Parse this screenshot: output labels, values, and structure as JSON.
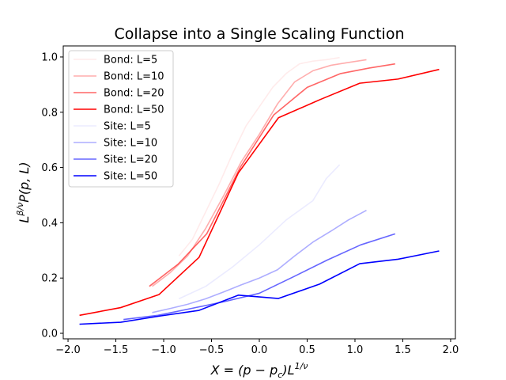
{
  "chart_data": {
    "type": "line",
    "title": "Collapse into a Single Scaling Function",
    "xlabel_parts": [
      "X = (p − p",
      "c",
      ")L",
      "1/ν"
    ],
    "ylabel_parts": [
      "L",
      "β/ν",
      "P(p, L)"
    ],
    "xlim": [
      -2.05,
      2.05
    ],
    "ylim": [
      -0.02,
      1.04
    ],
    "xticks": [
      -2.0,
      -1.5,
      -1.0,
      -0.5,
      0.0,
      0.5,
      1.0,
      1.5,
      2.0
    ],
    "xtick_labels": [
      "−2.0",
      "−1.5",
      "−1.0",
      "−0.5",
      "0.0",
      "0.5",
      "1.0",
      "1.5",
      "2.0"
    ],
    "yticks": [
      0.0,
      0.2,
      0.4,
      0.6,
      0.8,
      1.0
    ],
    "ytick_labels": [
      "0.0",
      "0.2",
      "0.4",
      "0.6",
      "0.8",
      "1.0"
    ],
    "grid": false,
    "legend_position": "top-left",
    "series": [
      {
        "name": "Bond: L=5",
        "color": "#ff0000",
        "opacity": 0.08,
        "x": [
          -0.84,
          -0.7,
          -0.56,
          -0.42,
          -0.28,
          -0.14,
          0.0,
          0.14,
          0.28,
          0.42,
          0.56,
          0.7,
          0.84
        ],
        "y": [
          0.28,
          0.34,
          0.44,
          0.54,
          0.65,
          0.75,
          0.82,
          0.89,
          0.94,
          0.975,
          0.985,
          0.99,
          0.998
        ]
      },
      {
        "name": "Bond: L=10",
        "color": "#ff0000",
        "opacity": 0.32,
        "x": [
          -1.12,
          -0.93,
          -0.75,
          -0.56,
          -0.37,
          -0.19,
          0.0,
          0.19,
          0.37,
          0.56,
          0.75,
          0.93,
          1.12
        ],
        "y": [
          0.17,
          0.22,
          0.28,
          0.38,
          0.5,
          0.62,
          0.72,
          0.83,
          0.91,
          0.95,
          0.97,
          0.98,
          0.99
        ]
      },
      {
        "name": "Bond: L=20",
        "color": "#ff0000",
        "opacity": 0.6,
        "x": [
          -1.15,
          -0.85,
          -0.55,
          -0.2,
          0.15,
          0.5,
          0.85,
          1.15,
          1.42
        ],
        "y": [
          0.17,
          0.25,
          0.36,
          0.6,
          0.79,
          0.89,
          0.94,
          0.96,
          0.975
        ]
      },
      {
        "name": "Bond: L=50",
        "color": "#ff0000",
        "opacity": 1.0,
        "x": [
          -1.88,
          -1.45,
          -1.05,
          -0.63,
          -0.22,
          0.2,
          0.63,
          1.05,
          1.45,
          1.88
        ],
        "y": [
          0.065,
          0.093,
          0.14,
          0.275,
          0.58,
          0.78,
          0.845,
          0.905,
          0.92,
          0.955
        ]
      },
      {
        "name": "Site: L=5",
        "color": "#0000ff",
        "opacity": 0.08,
        "x": [
          -0.84,
          -0.56,
          -0.28,
          0.0,
          0.28,
          0.56,
          0.7,
          0.84
        ],
        "y": [
          0.125,
          0.17,
          0.24,
          0.32,
          0.41,
          0.48,
          0.56,
          0.61
        ]
      },
      {
        "name": "Site: L=10",
        "color": "#0000ff",
        "opacity": 0.32,
        "x": [
          -1.12,
          -0.93,
          -0.75,
          -0.56,
          -0.37,
          -0.19,
          0.0,
          0.19,
          0.37,
          0.56,
          0.75,
          0.93,
          1.12
        ],
        "y": [
          0.075,
          0.09,
          0.105,
          0.125,
          0.15,
          0.175,
          0.2,
          0.23,
          0.28,
          0.33,
          0.37,
          0.41,
          0.445
        ]
      },
      {
        "name": "Site: L=20",
        "color": "#0000ff",
        "opacity": 0.6,
        "x": [
          -1.42,
          -1.06,
          -0.71,
          -0.36,
          0.0,
          0.36,
          0.71,
          1.06,
          1.42
        ],
        "y": [
          0.05,
          0.065,
          0.09,
          0.115,
          0.145,
          0.205,
          0.265,
          0.32,
          0.36
        ]
      },
      {
        "name": "Site: L=50",
        "color": "#0000ff",
        "opacity": 1.0,
        "x": [
          -1.88,
          -1.45,
          -1.05,
          -0.63,
          -0.22,
          0.2,
          0.63,
          1.05,
          1.45,
          1.88
        ],
        "y": [
          0.033,
          0.04,
          0.062,
          0.083,
          0.138,
          0.126,
          0.178,
          0.252,
          0.268,
          0.298
        ]
      }
    ]
  }
}
